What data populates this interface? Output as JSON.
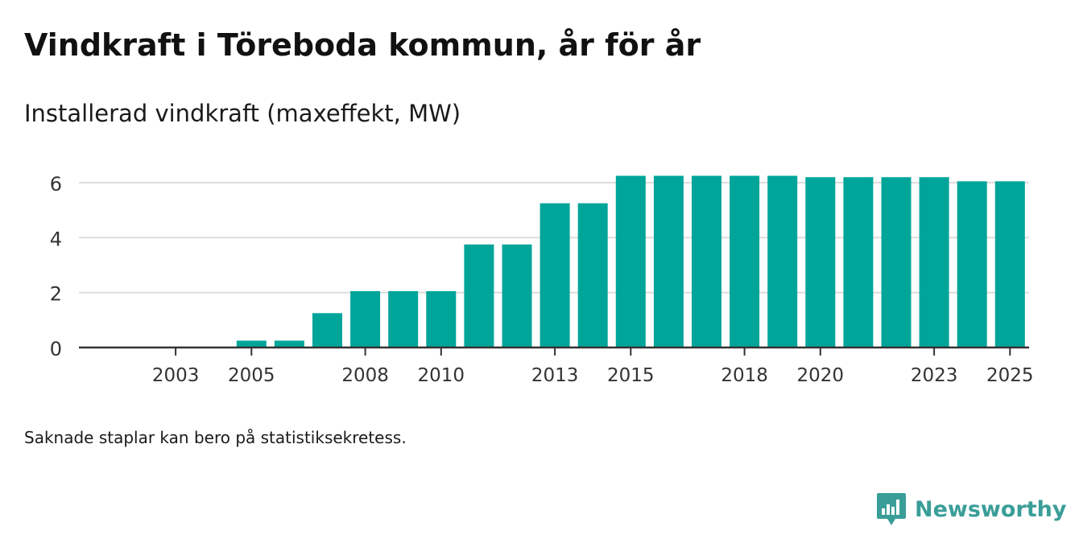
{
  "header": {
    "title": "Vindkraft i Töreboda kommun, år för år",
    "subtitle": "Installerad vindkraft (maxeffekt, MW)"
  },
  "footer": {
    "note": "Saknade staplar kan bero på statistiksekretess.",
    "brand": "Newsworthy"
  },
  "colors": {
    "bar": "#00a59a",
    "grid": "#dcdcdc",
    "axis": "#333333",
    "brand": "#3a9e98"
  },
  "chart_data": {
    "type": "bar",
    "title": "Vindkraft i Töreboda kommun, år för år",
    "ylabel": "Installerad vindkraft (maxeffekt, MW)",
    "xlabel": "",
    "categories": [
      "2002",
      "2003",
      "2004",
      "2005",
      "2006",
      "2007",
      "2008",
      "2009",
      "2010",
      "2011",
      "2012",
      "2013",
      "2014",
      "2015",
      "2016",
      "2017",
      "2018",
      "2019",
      "2020",
      "2021",
      "2022",
      "2023",
      "2024",
      "2025"
    ],
    "values": [
      0,
      0,
      0,
      0.25,
      0.25,
      1.25,
      2.05,
      2.05,
      2.05,
      3.75,
      3.75,
      5.25,
      5.25,
      6.25,
      6.25,
      6.25,
      6.25,
      6.25,
      6.2,
      6.2,
      6.2,
      6.2,
      6.05,
      6.05
    ],
    "xtick_labels": [
      "2003",
      "2005",
      "2008",
      "2010",
      "2013",
      "2015",
      "2018",
      "2020",
      "2023",
      "2025"
    ],
    "yticks": [
      0,
      2,
      4,
      6
    ],
    "ylim": [
      0,
      6.5
    ],
    "grid": true
  }
}
